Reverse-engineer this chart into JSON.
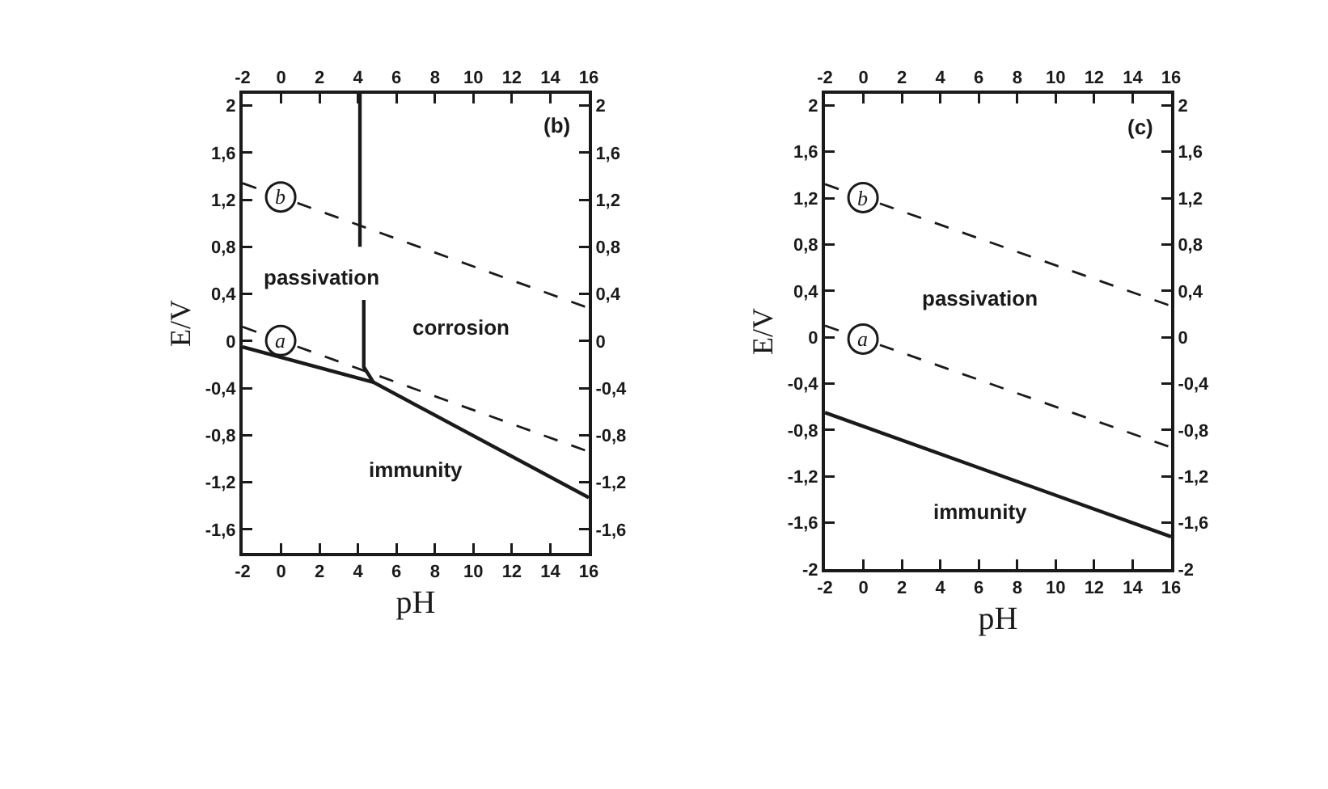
{
  "chart_data": [
    {
      "type": "line",
      "xlabel": "pH",
      "ylabel": "E/V",
      "xlim": [
        -2,
        16
      ],
      "ylim": [
        -1.8,
        2.1
      ],
      "xticks": [
        -2,
        0,
        2,
        4,
        6,
        8,
        10,
        12,
        14,
        16
      ],
      "x2lim": [
        -2,
        16
      ],
      "x2ticks": [
        -2,
        0,
        2,
        4,
        6,
        8,
        10,
        12,
        14,
        16
      ],
      "yticks": [
        2,
        {
          "value": 1.6,
          "label": "1,6"
        },
        {
          "value": 1.2,
          "label": "1,2"
        },
        {
          "value": 0.8,
          "label": "0,8"
        },
        {
          "value": 0.4,
          "label": "0,4"
        },
        0,
        {
          "value": -0.4,
          "label": "-0,4"
        },
        {
          "value": -0.8,
          "label": "-0,8"
        },
        {
          "value": -1.2,
          "label": "-1,2"
        },
        {
          "value": -1.6,
          "label": "-1,6"
        }
      ],
      "y2lim": [
        -1.8,
        2.1
      ],
      "y2ticks": [
        2,
        {
          "value": 1.6,
          "label": "1,6"
        },
        {
          "value": 1.2,
          "label": "1,2"
        },
        {
          "value": 0.8,
          "label": "0,8"
        },
        {
          "value": 0.4,
          "label": "0,4"
        },
        0,
        {
          "value": -0.4,
          "label": "-0,4"
        },
        {
          "value": -0.8,
          "label": "-0,8"
        },
        {
          "value": -1.2,
          "label": "-1,2"
        },
        {
          "value": -1.6,
          "label": "-1,6"
        }
      ],
      "grid": false,
      "annotations": [
        "(b)",
        "passivation",
        "corrosion",
        "immunity"
      ],
      "series": [
        {
          "name": "b",
          "line_style": "dashed",
          "color": "#1a1a1a",
          "x": [
            -2,
            16
          ],
          "values": [
            1.34,
            0.28
          ]
        },
        {
          "name": "a",
          "line_style": "dashed",
          "color": "#1a1a1a",
          "x": [
            -2,
            16
          ],
          "values": [
            0.12,
            -0.94
          ]
        },
        {
          "line_style": "solid",
          "color": "#1a1a1a",
          "x": [
            -2,
            4.8,
            16
          ],
          "values": [
            -0.05,
            -0.35,
            -1.33
          ]
        },
        {
          "line_style": "solid",
          "color": "#1a1a1a",
          "x": [
            4.1,
            4.1,
            4.2,
            4.3,
            4.3,
            4.8
          ],
          "values": [
            2.1,
            0.8,
            null,
            0.35,
            -0.22,
            -0.35
          ]
        }
      ]
    },
    {
      "type": "line",
      "xlabel": "pH",
      "ylabel": "E/V",
      "xlim": [
        -2,
        16
      ],
      "ylim": [
        -2,
        2.1
      ],
      "xticks": [
        -2,
        0,
        2,
        4,
        6,
        8,
        10,
        12,
        14,
        16
      ],
      "x2lim": [
        -2,
        16
      ],
      "x2ticks": [
        -2,
        0,
        2,
        4,
        6,
        8,
        10,
        12,
        14,
        16
      ],
      "yticks": [
        2,
        {
          "value": 1.6,
          "label": "1,6"
        },
        {
          "value": 1.2,
          "label": "1,2"
        },
        {
          "value": 0.8,
          "label": "0,8"
        },
        {
          "value": 0.4,
          "label": "0,4"
        },
        0,
        {
          "value": -0.4,
          "label": "-0,4"
        },
        {
          "value": -0.8,
          "label": "-0,8"
        },
        {
          "value": -1.2,
          "label": "-1,2"
        },
        {
          "value": -1.6,
          "label": "-1,6"
        },
        -2
      ],
      "y2lim": [
        -2,
        2.1
      ],
      "y2ticks": [
        2,
        {
          "value": 1.6,
          "label": "1,6"
        },
        {
          "value": 1.2,
          "label": "1,2"
        },
        {
          "value": 0.8,
          "label": "0,8"
        },
        {
          "value": 0.4,
          "label": "0,4"
        },
        0,
        {
          "value": -0.4,
          "label": "-0,4"
        },
        {
          "value": -0.8,
          "label": "-0,8"
        },
        {
          "value": -1.2,
          "label": "-1,2"
        },
        {
          "value": -1.6,
          "label": "-1,6"
        },
        -2
      ],
      "grid": false,
      "annotations": [
        "(c)",
        "passivation",
        "immunity"
      ],
      "series": [
        {
          "name": "b",
          "line_style": "dashed",
          "color": "#1a1a1a",
          "x": [
            -2,
            16
          ],
          "values": [
            1.32,
            0.27
          ]
        },
        {
          "name": "a",
          "line_style": "dashed",
          "color": "#1a1a1a",
          "x": [
            -2,
            16
          ],
          "values": [
            0.1,
            -0.95
          ]
        },
        {
          "line_style": "solid",
          "color": "#1a1a1a",
          "x": [
            -2,
            16
          ],
          "values": [
            -0.65,
            -1.72
          ]
        }
      ]
    }
  ]
}
